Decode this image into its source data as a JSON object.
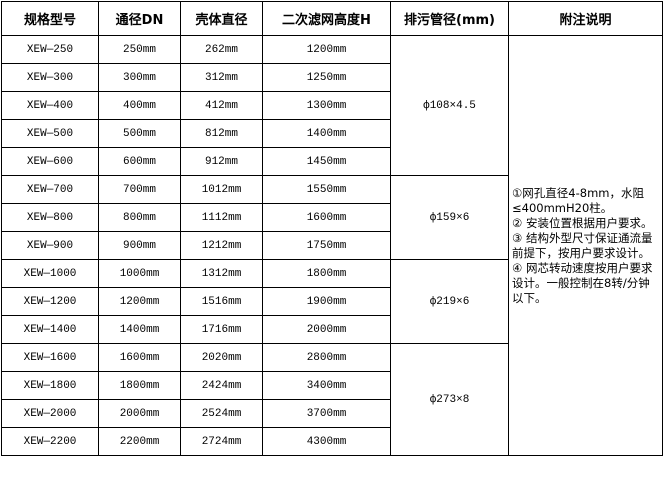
{
  "headers": [
    "规格型号",
    "通径DN",
    "壳体直径",
    "二次滤网高度H",
    "排污管径(mm)",
    "附注说明"
  ],
  "rows": [
    [
      "XEW—250",
      "250mm",
      "262mm",
      "1200mm"
    ],
    [
      "XEW—300",
      "300mm",
      "312mm",
      "1250mm"
    ],
    [
      "XEW—400",
      "400mm",
      "412mm",
      "1300mm"
    ],
    [
      "XEW—500",
      "500mm",
      "812mm",
      "1400mm"
    ],
    [
      "XEW—600",
      "600mm",
      "912mm",
      "1450mm"
    ],
    [
      "XEW—700",
      "700mm",
      "1012mm",
      "1550mm"
    ],
    [
      "XEW—800",
      "800mm",
      "1112mm",
      "1600mm"
    ],
    [
      "XEW—900",
      "900mm",
      "1212mm",
      "1750mm"
    ],
    [
      "XEW—1000",
      "1000mm",
      "1312mm",
      "1800mm"
    ],
    [
      "XEW—1200",
      "1200mm",
      "1516mm",
      "1900mm"
    ],
    [
      "XEW—1400",
      "1400mm",
      "1716mm",
      "2000mm"
    ],
    [
      "XEW—1600",
      "1600mm",
      "2020mm",
      "2800mm"
    ],
    [
      "XEW—1800",
      "1800mm",
      "2424mm",
      "3400mm"
    ],
    [
      "XEW—2000",
      "2000mm",
      "2524mm",
      "3700mm"
    ],
    [
      "XEW—2200",
      "2200mm",
      "2724mm",
      "4300mm"
    ]
  ],
  "drain_groups": [
    {
      "value": "ф108×4.5",
      "span": 5
    },
    {
      "value": "ф159×6",
      "span": 3
    },
    {
      "value": "ф219×6",
      "span": 3
    },
    {
      "value": "ф273×8",
      "span": 4
    }
  ],
  "notes": [
    "①网孔直径4-8mm，水阻≤400mmH20柱。",
    "② 安装位置根据用户要求。",
    "③ 结构外型尺寸保证通流量前提下，按用户要求设计。",
    "④ 网芯转动速度按用户要求设计。一般控制在8转/分钟以下。"
  ]
}
